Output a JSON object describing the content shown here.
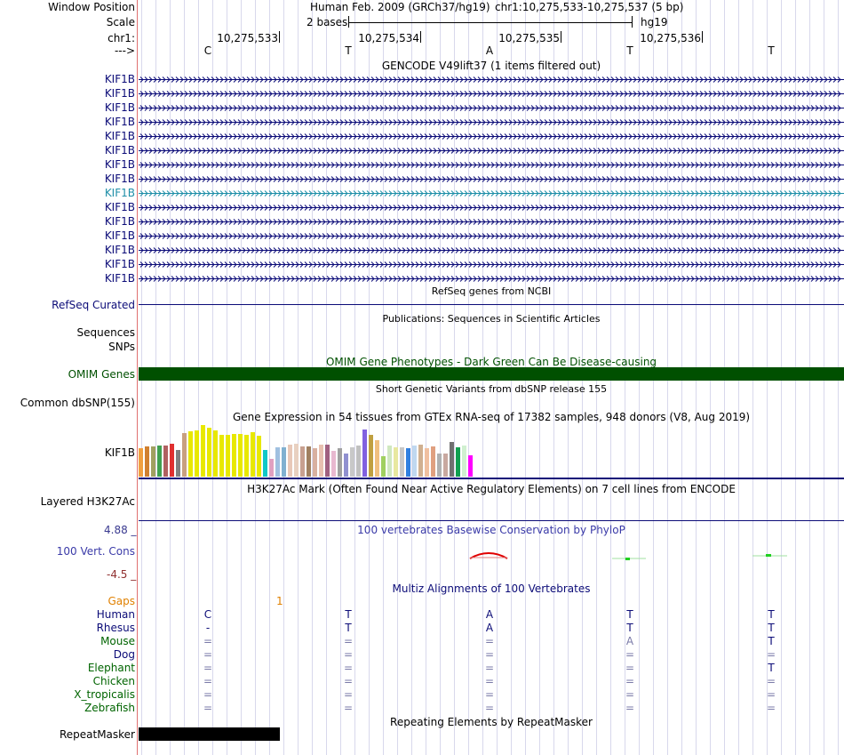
{
  "header": {
    "assembly": "Human Feb. 2009 (GRCh37/hg19)",
    "position": "chr1:10,275,533-10,275,537 (5 bp)",
    "scale_text": "2 bases",
    "scale_db": "hg19",
    "labels": {
      "window_position": "Window Position",
      "scale": "Scale",
      "chrom": "chr1:",
      "strand": "--->"
    },
    "coords": [
      "10,275,533",
      "10,275,534",
      "10,275,535",
      "10,275,536"
    ],
    "bases": [
      "C",
      "T",
      "A",
      "T",
      "T"
    ]
  },
  "gencode": {
    "title": "GENCODE V49lift37 (1 items filtered out)",
    "rows": [
      "KIF1B",
      "KIF1B",
      "KIF1B",
      "KIF1B",
      "KIF1B",
      "KIF1B",
      "KIF1B",
      "KIF1B",
      "KIF1B",
      "KIF1B",
      "KIF1B",
      "KIF1B",
      "KIF1B",
      "KIF1B",
      "KIF1B"
    ],
    "highlight_row": 8,
    "colors": {
      "normal": "#0c0c78",
      "highlight": "#1f8fa8"
    }
  },
  "refseq": {
    "title": "RefSeq genes from NCBI",
    "label": "RefSeq Curated"
  },
  "publications": {
    "title": "Publications: Sequences in Scientific Articles",
    "label_sequences": "Sequences",
    "label_snps": "SNPs"
  },
  "omim": {
    "title": "OMIM Gene Phenotypes - Dark Green Can Be Disease-causing",
    "label": "OMIM Genes",
    "color": "#005000"
  },
  "dbsnp": {
    "title": "Short Genetic Variants from dbSNP release 155",
    "label": "Common dbSNP(155)"
  },
  "gtex": {
    "title": "Gene Expression in 54 tissues from GTEx RNA-seq of 17382 samples, 948 donors (V8, Aug 2019)",
    "label": "KIF1B",
    "chart_data": {
      "type": "bar",
      "values": [
        32,
        34,
        34,
        35,
        35,
        37,
        30,
        49,
        51,
        52,
        58,
        55,
        52,
        47,
        47,
        48,
        48,
        47,
        50,
        46,
        30,
        20,
        33,
        33,
        36,
        37,
        34,
        34,
        32,
        36,
        36,
        29,
        32,
        26,
        33,
        35,
        53,
        47,
        41,
        23,
        35,
        33,
        33,
        32,
        35,
        36,
        32,
        34,
        26,
        26,
        39,
        33,
        35,
        24
      ],
      "colors": [
        "#f0a040",
        "#d08030",
        "#a0a060",
        "#40a050",
        "#b06060",
        "#e03030",
        "#808080",
        "#c8a080",
        "#e8e800",
        "#e8e800",
        "#e8e800",
        "#e8e800",
        "#e8e800",
        "#e8e800",
        "#e8e800",
        "#e8e800",
        "#e8e800",
        "#e8e800",
        "#e8e800",
        "#e8e800",
        "#10c8c8",
        "#e0a0c0",
        "#a0c0e0",
        "#80b0d0",
        "#e8c8b8",
        "#e8d0c0",
        "#c8a090",
        "#a08060",
        "#d8b0a0",
        "#e8c0b0",
        "#a06080",
        "#e8b8d0",
        "#a0a0a0",
        "#9090d0",
        "#c8c8c8",
        "#c0c0c0",
        "#8060e0",
        "#c0a040",
        "#f0c080",
        "#a0d060",
        "#d0e8c0",
        "#e8e8a0",
        "#c8c8c8",
        "#3080e0",
        "#c0d8f0",
        "#d0b090",
        "#f0c0a0",
        "#e0a080",
        "#b0b0b0",
        "#c8a8a0",
        "#707070",
        "#10a050",
        "#d0f0d0",
        "#ff00ff"
      ]
    }
  },
  "h3k27ac": {
    "title": "H3K27Ac Mark (Often Found Near Active Regulatory Elements) on 7 cell lines from ENCODE",
    "label": "Layered H3K27Ac"
  },
  "phylop": {
    "title": "100 vertebrates Basewise Conservation by PhyloP",
    "label": "100 Vert. Cons",
    "max_label": "4.88 _",
    "min_label": "-4.5 _",
    "colors": {
      "title": "#3a3aa8",
      "max": "#3a3a90",
      "min": "#903030"
    }
  },
  "multiz": {
    "title": "Multiz Alignments of 100 Vertebrates",
    "gaps_label": "Gaps",
    "gap_count": "1",
    "species": [
      {
        "name": "Human",
        "color": "#0c0c78",
        "bases": [
          "C",
          "T",
          "A",
          "T",
          "T"
        ],
        "base_color": "#0c0c78"
      },
      {
        "name": "Rhesus",
        "color": "#0c0c78",
        "bases": [
          "-",
          "T",
          "A",
          "T",
          "T"
        ],
        "base_color": "#0c0c78"
      },
      {
        "name": "Mouse",
        "color": "#006400",
        "bases": [
          "=",
          "=",
          "=",
          "A",
          "T"
        ],
        "base_color": "#7a7aa8"
      },
      {
        "name": "Dog",
        "color": "#0c0c78",
        "bases": [
          "=",
          "=",
          "=",
          "=",
          "="
        ],
        "base_color": "#7a7aa8"
      },
      {
        "name": "Elephant",
        "color": "#006400",
        "bases": [
          "=",
          "=",
          "=",
          "=",
          "T"
        ],
        "base_color": "#7a7aa8"
      },
      {
        "name": "Chicken",
        "color": "#006400",
        "bases": [
          "=",
          "=",
          "=",
          "=",
          "="
        ],
        "base_color": "#7a7aa8"
      },
      {
        "name": "X_tropicalis",
        "color": "#006400",
        "bases": [
          "=",
          "=",
          "=",
          "=",
          "="
        ],
        "base_color": "#7a7aa8"
      },
      {
        "name": "Zebrafish",
        "color": "#006400",
        "bases": [
          "=",
          "=",
          "=",
          "=",
          "="
        ],
        "base_color": "#7a7aa8"
      }
    ]
  },
  "repeatmasker": {
    "title": "Repeating Elements by RepeatMasker",
    "label": "RepeatMasker"
  }
}
